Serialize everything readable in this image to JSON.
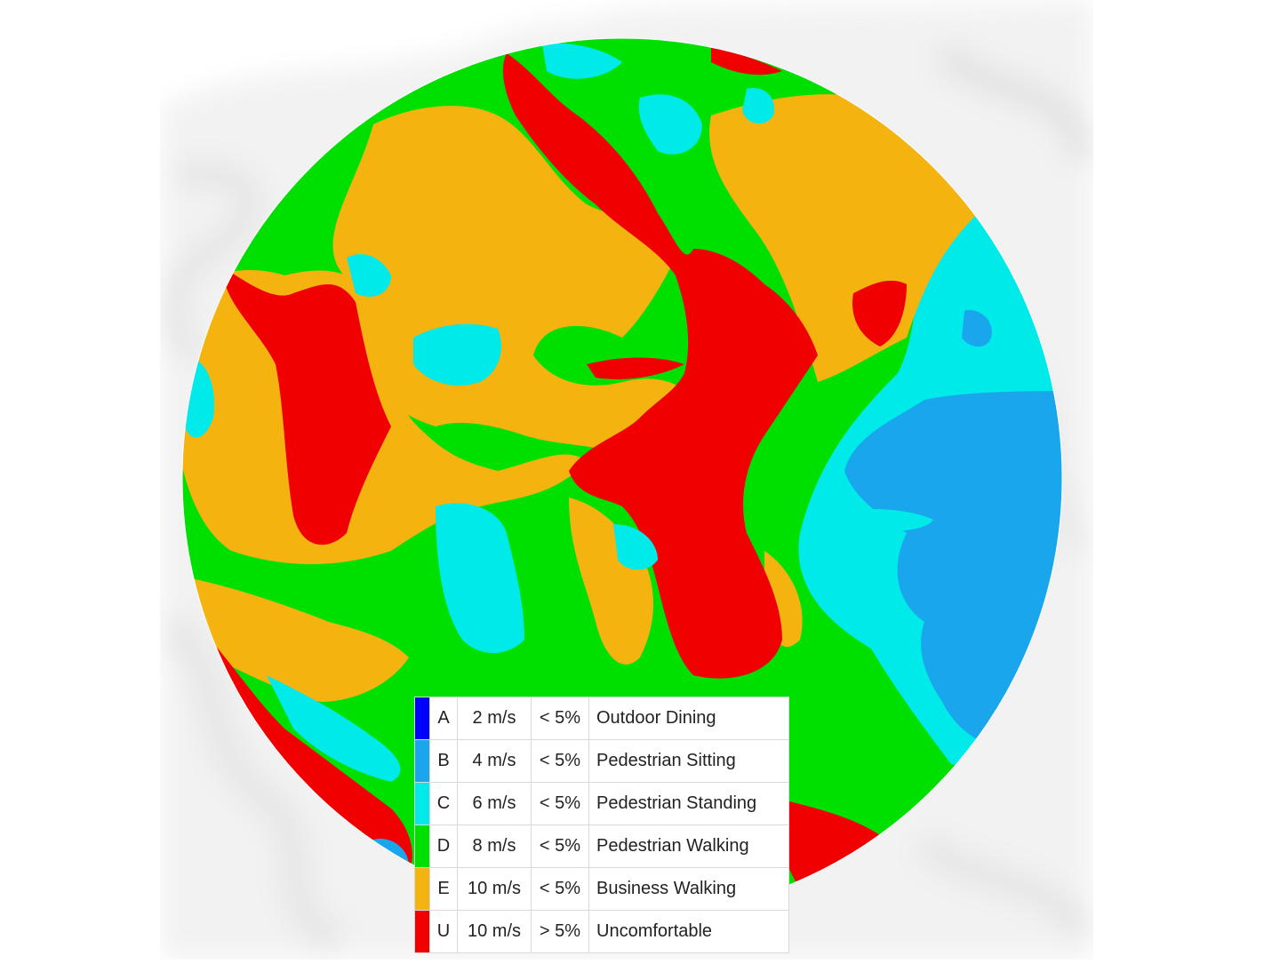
{
  "map": {
    "colors": {
      "background_mist": "#ececec",
      "A": "#0000ff",
      "B": "#19a6ec",
      "C": "#00eaea",
      "D": "#00e000",
      "E": "#f5b30f",
      "U": "#f00000"
    }
  },
  "legend": {
    "rows": [
      {
        "class": "A",
        "speed": "2 m/s",
        "threshold": "< 5%",
        "label": "Outdoor Dining",
        "color": "#0000ff"
      },
      {
        "class": "B",
        "speed": "4 m/s",
        "threshold": "< 5%",
        "label": "Pedestrian Sitting",
        "color": "#19a6ec"
      },
      {
        "class": "C",
        "speed": "6 m/s",
        "threshold": "< 5%",
        "label": "Pedestrian Standing",
        "color": "#00eaea"
      },
      {
        "class": "D",
        "speed": "8 m/s",
        "threshold": "< 5%",
        "label": "Pedestrian Walking",
        "color": "#00e000"
      },
      {
        "class": "E",
        "speed": "10 m/s",
        "threshold": "< 5%",
        "label": "Business Walking",
        "color": "#f5b30f"
      },
      {
        "class": "U",
        "speed": "10 m/s",
        "threshold": "> 5%",
        "label": "Uncomfortable",
        "color": "#f00000"
      }
    ]
  }
}
